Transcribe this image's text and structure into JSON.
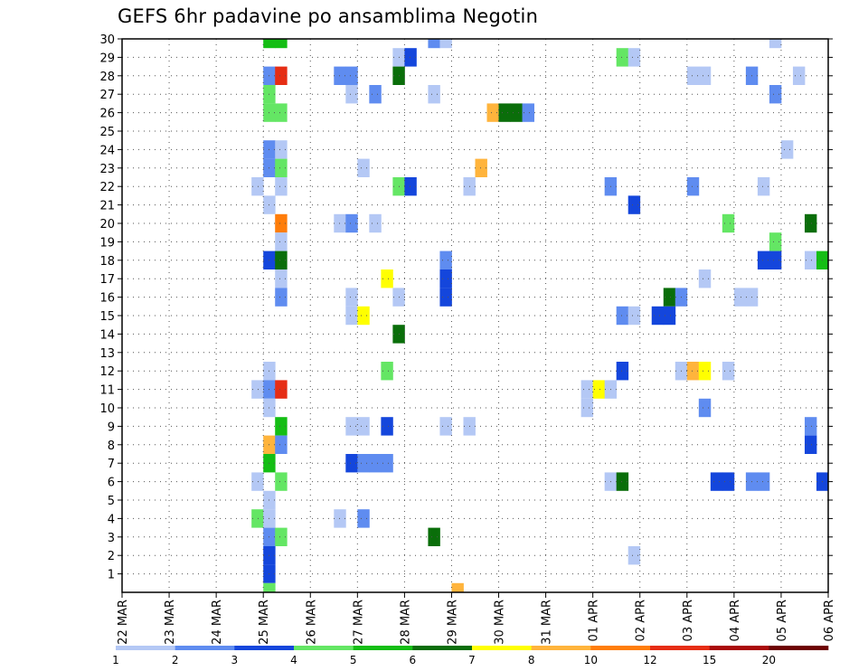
{
  "chart_data": {
    "type": "heatmap",
    "title": "GEFS 6hr padavine po ansamblima Negotin",
    "xlabel": "",
    "ylabel": "",
    "x_ticks": [
      "22 MAR",
      "23 MAR",
      "24 MAR",
      "25 MAR",
      "26 MAR",
      "27 MAR",
      "28 MAR",
      "29 MAR",
      "30 MAR",
      "31 MAR",
      "01 APR",
      "02 APR",
      "03 APR",
      "04 APR",
      "05 APR",
      "06 APR"
    ],
    "y_ticks": [
      "1",
      "2",
      "3",
      "4",
      "5",
      "6",
      "7",
      "8",
      "9",
      "10",
      "11",
      "12",
      "13",
      "14",
      "15",
      "16",
      "17",
      "18",
      "19",
      "20",
      "21",
      "22",
      "23",
      "24",
      "25",
      "26",
      "27",
      "28",
      "29",
      "30"
    ],
    "grid": true,
    "legend": {
      "placement": "bottom",
      "labels": [
        "1",
        "2",
        "3",
        "4",
        "5",
        "6",
        "7",
        "8",
        "10",
        "12",
        "15",
        "20"
      ],
      "colors": [
        "#b4c8f5",
        "#5f8cf0",
        "#1446dc",
        "#64e664",
        "#14be14",
        "#0a6e0a",
        "#ffff00",
        "#ffb43c",
        "#ff7d0a",
        "#e62d14",
        "#aa0a0a",
        "#6e0000"
      ]
    },
    "x_unit": "day index from 22 MAR (0) in 6-hour steps",
    "cells": [
      {
        "x": 3.0,
        "y": 30,
        "c": "#14be14"
      },
      {
        "x": 3.25,
        "y": 30,
        "c": "#14be14"
      },
      {
        "x": 6.5,
        "y": 30,
        "c": "#5f8cf0"
      },
      {
        "x": 6.75,
        "y": 30,
        "c": "#b4c8f5"
      },
      {
        "x": 13.75,
        "y": 30,
        "c": "#b4c8f5"
      },
      {
        "x": 5.75,
        "y": 29,
        "c": "#b4c8f5"
      },
      {
        "x": 6.0,
        "y": 29,
        "c": "#1446dc"
      },
      {
        "x": 10.5,
        "y": 29,
        "c": "#64e664"
      },
      {
        "x": 10.75,
        "y": 29,
        "c": "#b4c8f5"
      },
      {
        "x": 3.0,
        "y": 28,
        "c": "#5f8cf0"
      },
      {
        "x": 3.25,
        "y": 28,
        "c": "#e62d14"
      },
      {
        "x": 4.5,
        "y": 28,
        "c": "#5f8cf0"
      },
      {
        "x": 4.75,
        "y": 28,
        "c": "#5f8cf0"
      },
      {
        "x": 5.75,
        "y": 28,
        "c": "#0a6e0a"
      },
      {
        "x": 12.0,
        "y": 28,
        "c": "#b4c8f5"
      },
      {
        "x": 12.25,
        "y": 28,
        "c": "#b4c8f5"
      },
      {
        "x": 13.25,
        "y": 28,
        "c": "#5f8cf0"
      },
      {
        "x": 14.25,
        "y": 28,
        "c": "#b4c8f5"
      },
      {
        "x": 3.0,
        "y": 27,
        "c": "#64e664"
      },
      {
        "x": 4.75,
        "y": 27,
        "c": "#b4c8f5"
      },
      {
        "x": 5.25,
        "y": 27,
        "c": "#5f8cf0"
      },
      {
        "x": 6.5,
        "y": 27,
        "c": "#b4c8f5"
      },
      {
        "x": 13.75,
        "y": 27,
        "c": "#5f8cf0"
      },
      {
        "x": 3.0,
        "y": 26,
        "c": "#64e664"
      },
      {
        "x": 3.25,
        "y": 26,
        "c": "#64e664"
      },
      {
        "x": 7.75,
        "y": 26,
        "c": "#ffb43c"
      },
      {
        "x": 8.0,
        "y": 26,
        "c": "#0a6e0a"
      },
      {
        "x": 8.25,
        "y": 26,
        "c": "#0a6e0a"
      },
      {
        "x": 8.5,
        "y": 26,
        "c": "#5f8cf0"
      },
      {
        "x": 3.0,
        "y": 24,
        "c": "#5f8cf0"
      },
      {
        "x": 3.25,
        "y": 24,
        "c": "#b4c8f5"
      },
      {
        "x": 14.0,
        "y": 24,
        "c": "#b4c8f5"
      },
      {
        "x": 3.0,
        "y": 23,
        "c": "#5f8cf0"
      },
      {
        "x": 3.25,
        "y": 23,
        "c": "#64e664"
      },
      {
        "x": 5.0,
        "y": 23,
        "c": "#b4c8f5"
      },
      {
        "x": 7.5,
        "y": 23,
        "c": "#ffb43c"
      },
      {
        "x": 2.75,
        "y": 22,
        "c": "#b4c8f5"
      },
      {
        "x": 3.25,
        "y": 22,
        "c": "#b4c8f5"
      },
      {
        "x": 5.75,
        "y": 22,
        "c": "#64e664"
      },
      {
        "x": 6.0,
        "y": 22,
        "c": "#1446dc"
      },
      {
        "x": 7.25,
        "y": 22,
        "c": "#b4c8f5"
      },
      {
        "x": 10.25,
        "y": 22,
        "c": "#5f8cf0"
      },
      {
        "x": 12.0,
        "y": 22,
        "c": "#5f8cf0"
      },
      {
        "x": 13.5,
        "y": 22,
        "c": "#b4c8f5"
      },
      {
        "x": 3.0,
        "y": 21,
        "c": "#b4c8f5"
      },
      {
        "x": 10.75,
        "y": 21,
        "c": "#1446dc"
      },
      {
        "x": 3.25,
        "y": 20,
        "c": "#ff7d0a"
      },
      {
        "x": 4.5,
        "y": 20,
        "c": "#b4c8f5"
      },
      {
        "x": 4.75,
        "y": 20,
        "c": "#5f8cf0"
      },
      {
        "x": 5.25,
        "y": 20,
        "c": "#b4c8f5"
      },
      {
        "x": 12.75,
        "y": 20,
        "c": "#64e664"
      },
      {
        "x": 14.5,
        "y": 20,
        "c": "#0a6e0a"
      },
      {
        "x": 3.25,
        "y": 19,
        "c": "#b4c8f5"
      },
      {
        "x": 13.75,
        "y": 19,
        "c": "#64e664"
      },
      {
        "x": 3.0,
        "y": 18,
        "c": "#1446dc"
      },
      {
        "x": 3.25,
        "y": 18,
        "c": "#0a6e0a"
      },
      {
        "x": 6.75,
        "y": 18,
        "c": "#5f8cf0"
      },
      {
        "x": 13.5,
        "y": 18,
        "c": "#1446dc"
      },
      {
        "x": 13.75,
        "y": 18,
        "c": "#1446dc"
      },
      {
        "x": 14.5,
        "y": 18,
        "c": "#b4c8f5"
      },
      {
        "x": 14.75,
        "y": 18,
        "c": "#14be14"
      },
      {
        "x": 3.25,
        "y": 17,
        "c": "#b4c8f5"
      },
      {
        "x": 5.5,
        "y": 17,
        "c": "#ffff00"
      },
      {
        "x": 6.75,
        "y": 17,
        "c": "#1446dc"
      },
      {
        "x": 12.25,
        "y": 17,
        "c": "#b4c8f5"
      },
      {
        "x": 3.25,
        "y": 16,
        "c": "#5f8cf0"
      },
      {
        "x": 4.75,
        "y": 16,
        "c": "#b4c8f5"
      },
      {
        "x": 5.75,
        "y": 16,
        "c": "#b4c8f5"
      },
      {
        "x": 6.75,
        "y": 16,
        "c": "#1446dc"
      },
      {
        "x": 11.5,
        "y": 16,
        "c": "#0a6e0a"
      },
      {
        "x": 11.75,
        "y": 16,
        "c": "#5f8cf0"
      },
      {
        "x": 13.0,
        "y": 16,
        "c": "#b4c8f5"
      },
      {
        "x": 13.25,
        "y": 16,
        "c": "#b4c8f5"
      },
      {
        "x": 4.75,
        "y": 15,
        "c": "#b4c8f5"
      },
      {
        "x": 5.0,
        "y": 15,
        "c": "#ffff00"
      },
      {
        "x": 10.5,
        "y": 15,
        "c": "#5f8cf0"
      },
      {
        "x": 10.75,
        "y": 15,
        "c": "#b4c8f5"
      },
      {
        "x": 11.25,
        "y": 15,
        "c": "#1446dc"
      },
      {
        "x": 11.5,
        "y": 15,
        "c": "#1446dc"
      },
      {
        "x": 5.75,
        "y": 14,
        "c": "#0a6e0a"
      },
      {
        "x": 3.0,
        "y": 12,
        "c": "#b4c8f5"
      },
      {
        "x": 5.5,
        "y": 12,
        "c": "#64e664"
      },
      {
        "x": 10.5,
        "y": 12,
        "c": "#1446dc"
      },
      {
        "x": 11.75,
        "y": 12,
        "c": "#b4c8f5"
      },
      {
        "x": 12.0,
        "y": 12,
        "c": "#ffb43c"
      },
      {
        "x": 12.25,
        "y": 12,
        "c": "#ffff00"
      },
      {
        "x": 12.75,
        "y": 12,
        "c": "#b4c8f5"
      },
      {
        "x": 2.75,
        "y": 11,
        "c": "#b4c8f5"
      },
      {
        "x": 3.0,
        "y": 11,
        "c": "#5f8cf0"
      },
      {
        "x": 3.25,
        "y": 11,
        "c": "#e62d14"
      },
      {
        "x": 9.75,
        "y": 11,
        "c": "#b4c8f5"
      },
      {
        "x": 10.0,
        "y": 11,
        "c": "#ffff00"
      },
      {
        "x": 10.25,
        "y": 11,
        "c": "#b4c8f5"
      },
      {
        "x": 3.0,
        "y": 10,
        "c": "#b4c8f5"
      },
      {
        "x": 9.75,
        "y": 10,
        "c": "#b4c8f5"
      },
      {
        "x": 12.25,
        "y": 10,
        "c": "#5f8cf0"
      },
      {
        "x": 3.25,
        "y": 9,
        "c": "#14be14"
      },
      {
        "x": 4.75,
        "y": 9,
        "c": "#b4c8f5"
      },
      {
        "x": 5.0,
        "y": 9,
        "c": "#b4c8f5"
      },
      {
        "x": 5.5,
        "y": 9,
        "c": "#1446dc"
      },
      {
        "x": 6.75,
        "y": 9,
        "c": "#b4c8f5"
      },
      {
        "x": 7.25,
        "y": 9,
        "c": "#b4c8f5"
      },
      {
        "x": 14.5,
        "y": 9,
        "c": "#5f8cf0"
      },
      {
        "x": 3.0,
        "y": 8,
        "c": "#ffb43c"
      },
      {
        "x": 3.25,
        "y": 8,
        "c": "#5f8cf0"
      },
      {
        "x": 14.5,
        "y": 8,
        "c": "#1446dc"
      },
      {
        "x": 3.0,
        "y": 7,
        "c": "#14be14"
      },
      {
        "x": 4.75,
        "y": 7,
        "c": "#1446dc"
      },
      {
        "x": 5.0,
        "y": 7,
        "c": "#5f8cf0"
      },
      {
        "x": 5.25,
        "y": 7,
        "c": "#5f8cf0"
      },
      {
        "x": 5.5,
        "y": 7,
        "c": "#5f8cf0"
      },
      {
        "x": 2.75,
        "y": 6,
        "c": "#b4c8f5"
      },
      {
        "x": 3.25,
        "y": 6,
        "c": "#64e664"
      },
      {
        "x": 10.25,
        "y": 6,
        "c": "#b4c8f5"
      },
      {
        "x": 10.5,
        "y": 6,
        "c": "#0a6e0a"
      },
      {
        "x": 12.5,
        "y": 6,
        "c": "#1446dc"
      },
      {
        "x": 12.75,
        "y": 6,
        "c": "#1446dc"
      },
      {
        "x": 13.25,
        "y": 6,
        "c": "#5f8cf0"
      },
      {
        "x": 13.5,
        "y": 6,
        "c": "#5f8cf0"
      },
      {
        "x": 14.75,
        "y": 6,
        "c": "#1446dc"
      },
      {
        "x": 3.0,
        "y": 5,
        "c": "#b4c8f5"
      },
      {
        "x": 2.75,
        "y": 4,
        "c": "#64e664"
      },
      {
        "x": 3.0,
        "y": 4,
        "c": "#b4c8f5"
      },
      {
        "x": 4.5,
        "y": 4,
        "c": "#b4c8f5"
      },
      {
        "x": 5.0,
        "y": 4,
        "c": "#5f8cf0"
      },
      {
        "x": 3.0,
        "y": 3,
        "c": "#5f8cf0"
      },
      {
        "x": 3.25,
        "y": 3,
        "c": "#64e664"
      },
      {
        "x": 6.5,
        "y": 3,
        "c": "#0a6e0a"
      },
      {
        "x": 3.0,
        "y": 2,
        "c": "#1446dc"
      },
      {
        "x": 10.75,
        "y": 2,
        "c": "#b4c8f5"
      },
      {
        "x": 3.0,
        "y": 1,
        "c": "#1446dc"
      },
      {
        "x": 3.0,
        "y": 0,
        "c": "#64e664"
      },
      {
        "x": 7.0,
        "y": 0,
        "c": "#ffb43c"
      }
    ]
  }
}
